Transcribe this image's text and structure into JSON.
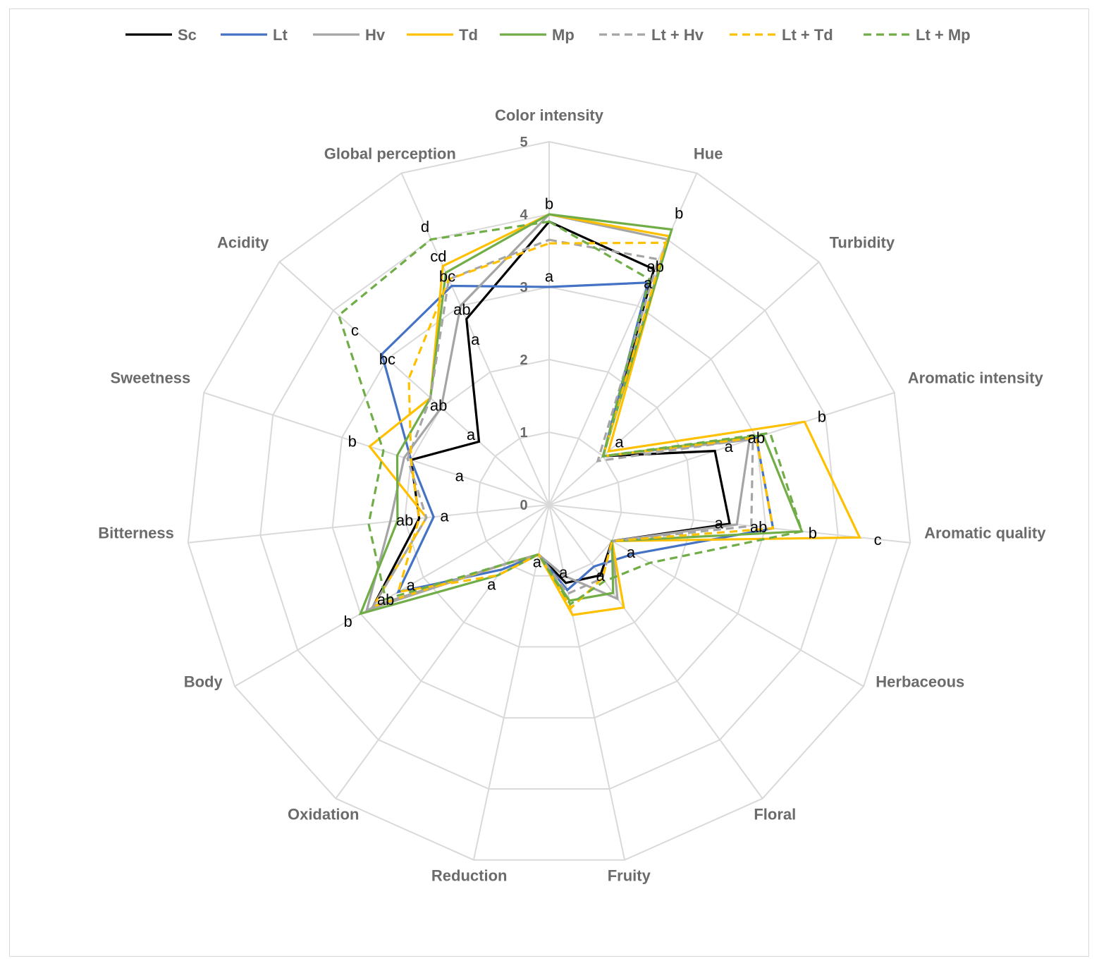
{
  "chart_data": {
    "type": "radar",
    "title": "",
    "axes": [
      "Color intensity",
      "Hue",
      "Turbidity",
      "Aromatic intensity",
      "Aromatic quality",
      "Herbaceous",
      "Floral",
      "Fruity",
      "Reduction",
      "Oxidation",
      "Body",
      "Bitterness",
      "Sweetness",
      "Acidity",
      "Global perception"
    ],
    "rlim": [
      0,
      5
    ],
    "ticks": [
      "0",
      "1",
      "2",
      "3",
      "4",
      "5"
    ],
    "grid": true,
    "legend_position": "top",
    "series": [
      {
        "name": "Sc",
        "color": "#000000",
        "dash": "solid",
        "values": [
          3.9,
          3.55,
          1.0,
          2.4,
          2.5,
          1.0,
          1.2,
          1.1,
          0.7,
          1.0,
          2.8,
          1.8,
          2.0,
          1.3,
          2.8
        ]
      },
      {
        "name": "Lt",
        "color": "#4472c4",
        "dash": "solid",
        "values": [
          3.0,
          3.35,
          1.0,
          3.0,
          3.1,
          1.35,
          1.05,
          1.2,
          0.7,
          1.1,
          2.4,
          1.6,
          2.0,
          3.1,
          3.3
        ]
      },
      {
        "name": "Hv",
        "color": "#a5a5a5",
        "dash": "solid",
        "values": [
          4.0,
          4.0,
          1.0,
          2.9,
          2.6,
          1.0,
          1.6,
          1.0,
          0.7,
          1.0,
          2.9,
          2.2,
          2.1,
          2.0,
          3.0
        ]
      },
      {
        "name": "Td",
        "color": "#ffc000",
        "dash": "solid",
        "values": [
          4.0,
          4.05,
          1.1,
          3.7,
          4.3,
          1.0,
          1.75,
          1.55,
          0.7,
          1.0,
          2.8,
          1.7,
          2.6,
          2.2,
          3.6
        ]
      },
      {
        "name": "Mp",
        "color": "#70ad47",
        "dash": "solid",
        "values": [
          4.0,
          4.15,
          1.0,
          3.1,
          3.5,
          1.0,
          1.5,
          1.35,
          0.7,
          1.2,
          3.0,
          2.1,
          2.2,
          2.2,
          3.5
        ]
      },
      {
        "name": "Lt + Hv",
        "color": "#a5a5a5",
        "dash": "dashed",
        "values": [
          3.65,
          3.7,
          0.9,
          2.95,
          2.8,
          1.0,
          1.25,
          1.25,
          0.7,
          1.0,
          2.8,
          1.7,
          2.05,
          2.2,
          3.4
        ]
      },
      {
        "name": "Lt + Td",
        "color": "#ffc000",
        "dash": "dashed",
        "values": [
          3.6,
          3.95,
          1.0,
          3.0,
          3.1,
          1.0,
          1.25,
          1.45,
          0.7,
          1.2,
          2.4,
          1.8,
          2.0,
          2.6,
          3.4
        ]
      },
      {
        "name": "Lt + Mp",
        "color": "#70ad47",
        "dash": "dashed",
        "values": [
          3.9,
          3.4,
          1.0,
          3.2,
          3.5,
          1.6,
          1.3,
          1.4,
          0.7,
          1.0,
          2.6,
          2.5,
          2.4,
          3.9,
          4.0
        ]
      }
    ],
    "annotations": [
      {
        "text": "b",
        "axis": "Color intensity",
        "value": 4.15
      },
      {
        "text": "a",
        "axis": "Color intensity",
        "value": 3.15
      },
      {
        "text": "b",
        "axis": "Hue",
        "value": 4.4
      },
      {
        "text": "ab",
        "axis": "Hue",
        "value": 3.6
      },
      {
        "text": "a",
        "axis": "Hue",
        "value": 3.35
      },
      {
        "text": "a",
        "axis": "Turbidity",
        "value": 1.3
      },
      {
        "text": "ab",
        "axis": "Aromatic intensity",
        "value": 3.0
      },
      {
        "text": "b",
        "axis": "Aromatic intensity",
        "value": 3.95
      },
      {
        "text": "a",
        "axis": "Aromatic intensity",
        "value": 2.6
      },
      {
        "text": "a",
        "axis": "Aromatic quality",
        "value": 2.35
      },
      {
        "text": "ab",
        "axis": "Aromatic quality",
        "value": 2.9
      },
      {
        "text": "b",
        "axis": "Aromatic quality",
        "value": 3.65
      },
      {
        "text": "c",
        "axis": "Aromatic quality",
        "value": 4.55
      },
      {
        "text": "a",
        "axis": "Herbaceous",
        "value": 1.3
      },
      {
        "text": "a",
        "axis": "Floral",
        "value": 1.2
      },
      {
        "text": "a",
        "axis": "Fruity",
        "value": 0.95
      },
      {
        "text": "a",
        "axis": "Reduction",
        "value": 0.8
      },
      {
        "text": "a",
        "axis": "Oxidation",
        "value": 1.35
      },
      {
        "text": "a",
        "axis": "Body",
        "value": 2.2
      },
      {
        "text": "ab",
        "axis": "Body",
        "value": 2.6
      },
      {
        "text": "b",
        "axis": "Body",
        "value": 3.2
      },
      {
        "text": "a",
        "axis": "Bitterness",
        "value": 1.45
      },
      {
        "text": "ab",
        "axis": "Bitterness",
        "value": 2.0
      },
      {
        "text": "a",
        "axis": "Sweetness",
        "value": 1.3
      },
      {
        "text": "b",
        "axis": "Sweetness",
        "value": 2.85
      },
      {
        "text": "a",
        "axis": "Acidity",
        "value": 1.45
      },
      {
        "text": "ab",
        "axis": "Acidity",
        "value": 2.05
      },
      {
        "text": "bc",
        "axis": "Acidity",
        "value": 3.0
      },
      {
        "text": "c",
        "axis": "Acidity",
        "value": 3.6
      },
      {
        "text": "a",
        "axis": "Global perception",
        "value": 2.5
      },
      {
        "text": "ab",
        "axis": "Global perception",
        "value": 2.95
      },
      {
        "text": "bc",
        "axis": "Global perception",
        "value": 3.45
      },
      {
        "text": "cd",
        "axis": "Global perception",
        "value": 3.75
      },
      {
        "text": "d",
        "axis": "Global perception",
        "value": 4.2
      }
    ]
  }
}
